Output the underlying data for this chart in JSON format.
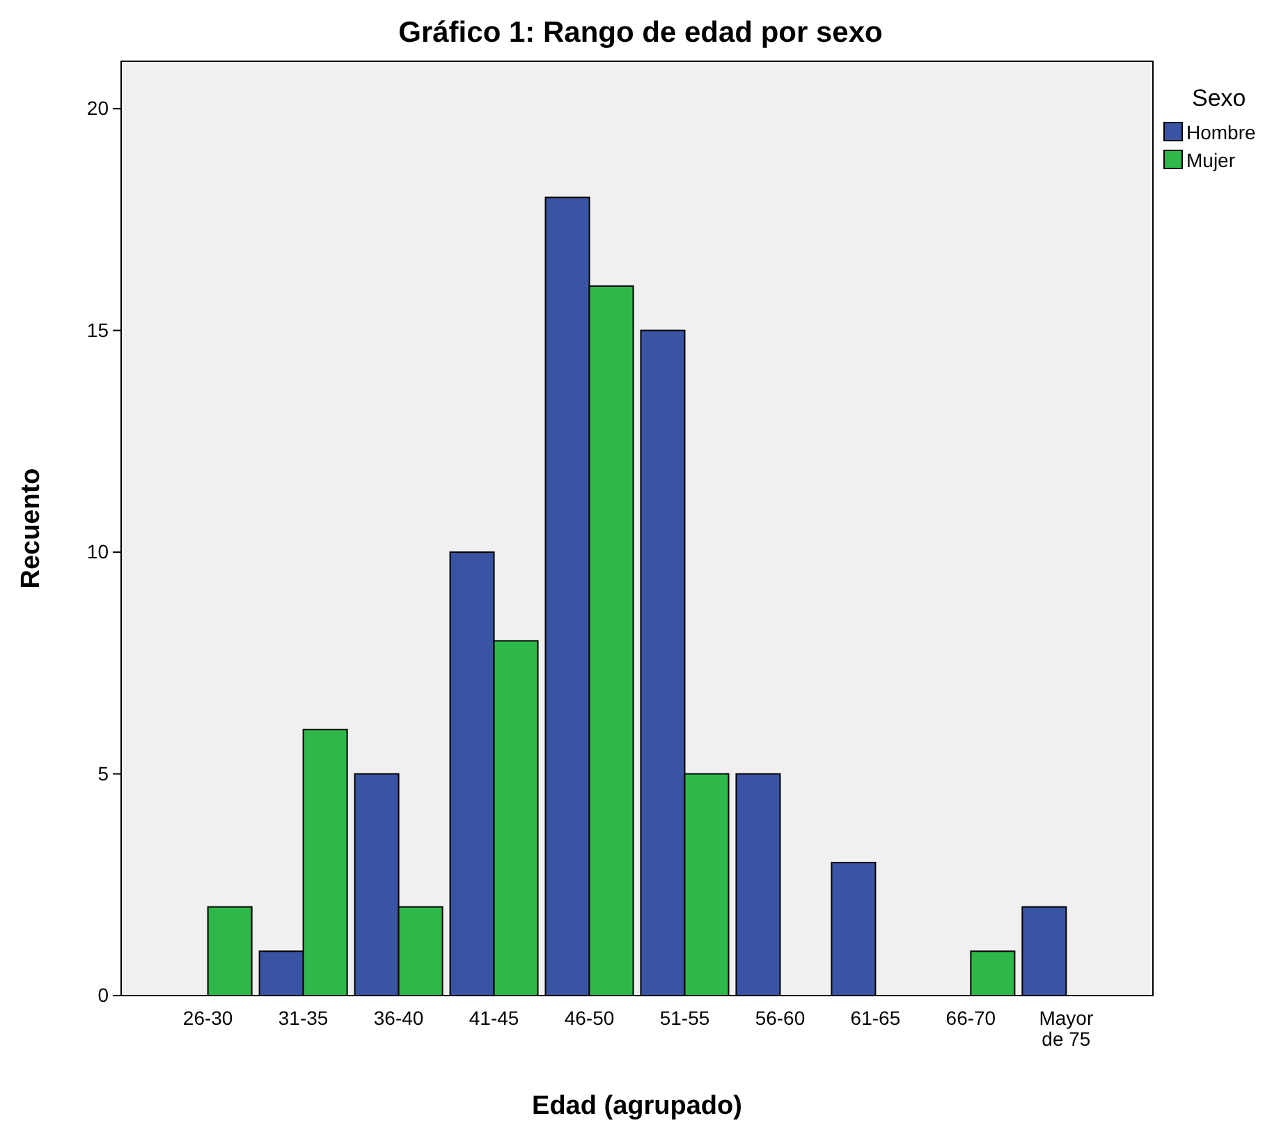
{
  "chart_data": {
    "type": "bar",
    "title": "Gráfico 1:  Rango de edad por sexo",
    "xlabel": "Edad (agrupado)",
    "ylabel": "Recuento",
    "legend_title": "Sexo",
    "legend": "top right",
    "grid": false,
    "categories": [
      "26-30",
      "31-35",
      "36-40",
      "41-45",
      "46-50",
      "51-55",
      "56-60",
      "61-65",
      "66-70",
      "Mayor de 75"
    ],
    "series": [
      {
        "name": "Hombre",
        "color": "#3a54a4",
        "values": [
          0,
          1,
          5,
          10,
          18,
          15,
          5,
          3,
          0,
          2
        ]
      },
      {
        "name": "Mujer",
        "color": "#2fb84a",
        "values": [
          2,
          6,
          2,
          8,
          16,
          5,
          0,
          0,
          1,
          0
        ]
      }
    ],
    "ylim": [
      0,
      21.07
    ],
    "yticks": [
      0,
      5,
      10,
      15,
      20
    ]
  }
}
